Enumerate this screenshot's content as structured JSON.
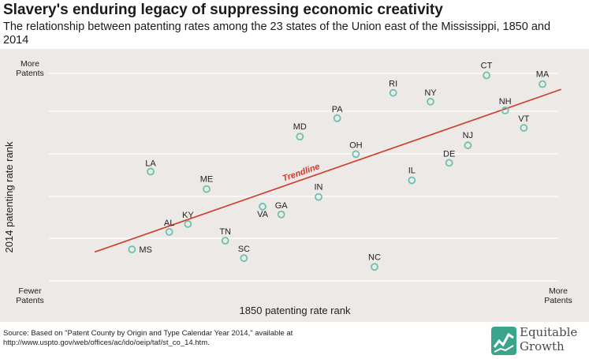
{
  "header": {
    "title": "Slavery's enduring legacy of suppressing economic creativity",
    "subtitle": "The relationship between patenting rates among the 23 states of the Union east of the Mississippi, 1850 and 2014"
  },
  "footer": {
    "source": "Source: Based on \"Patent County by Origin and Type Calendar Year 2014,\" available at http://www.uspto.gov/web/offices/ac/ido/oeip/taf/st_co_14.htm.",
    "logo_line1": "Equitable",
    "logo_line2": "Growth",
    "logo_color": "#3aa58b"
  },
  "chart_data": {
    "type": "scatter",
    "title": "Slavery's enduring legacy of suppressing economic creativity",
    "xlabel": "1850 patenting rate rank",
    "ylabel": "2014 patenting rate rank",
    "x_low_label": "",
    "x_high_label": "More Patents",
    "y_high_label": "More Patents",
    "y_low_label": "Fewer Patents",
    "trendline_label": "Trendline",
    "xlim": [
      0,
      24
    ],
    "ylim": [
      0,
      24
    ],
    "grid": true,
    "marker_color": "#6cc1b1",
    "trendline_color": "#d13b2a",
    "points": [
      {
        "label": "MS",
        "x": 2,
        "y": 3.6
      },
      {
        "label": "LA",
        "x": 3,
        "y": 12.5
      },
      {
        "label": "AL",
        "x": 4,
        "y": 5.6
      },
      {
        "label": "KY",
        "x": 5,
        "y": 6.5
      },
      {
        "label": "ME",
        "x": 6,
        "y": 10.5
      },
      {
        "label": "TN",
        "x": 7,
        "y": 4.6
      },
      {
        "label": "SC",
        "x": 8,
        "y": 2.6
      },
      {
        "label": "VA",
        "x": 9,
        "y": 8.5
      },
      {
        "label": "GA",
        "x": 10,
        "y": 7.6
      },
      {
        "label": "MD",
        "x": 11,
        "y": 16.5
      },
      {
        "label": "IN",
        "x": 12,
        "y": 9.6
      },
      {
        "label": "PA",
        "x": 13,
        "y": 18.6
      },
      {
        "label": "OH",
        "x": 14,
        "y": 14.5
      },
      {
        "label": "NC",
        "x": 15,
        "y": 1.6
      },
      {
        "label": "RI",
        "x": 16,
        "y": 21.5
      },
      {
        "label": "IL",
        "x": 17,
        "y": 11.5
      },
      {
        "label": "NY",
        "x": 18,
        "y": 20.5
      },
      {
        "label": "DE",
        "x": 19,
        "y": 13.5
      },
      {
        "label": "NJ",
        "x": 20,
        "y": 15.5
      },
      {
        "label": "CT",
        "x": 21,
        "y": 23.5
      },
      {
        "label": "NH",
        "x": 22,
        "y": 19.5
      },
      {
        "label": "VT",
        "x": 23,
        "y": 17.5
      },
      {
        "label": "MA",
        "x": 24,
        "y": 22.5
      }
    ],
    "trendline": {
      "x": [
        0,
        25
      ],
      "y": [
        3.3,
        21.9
      ]
    }
  }
}
